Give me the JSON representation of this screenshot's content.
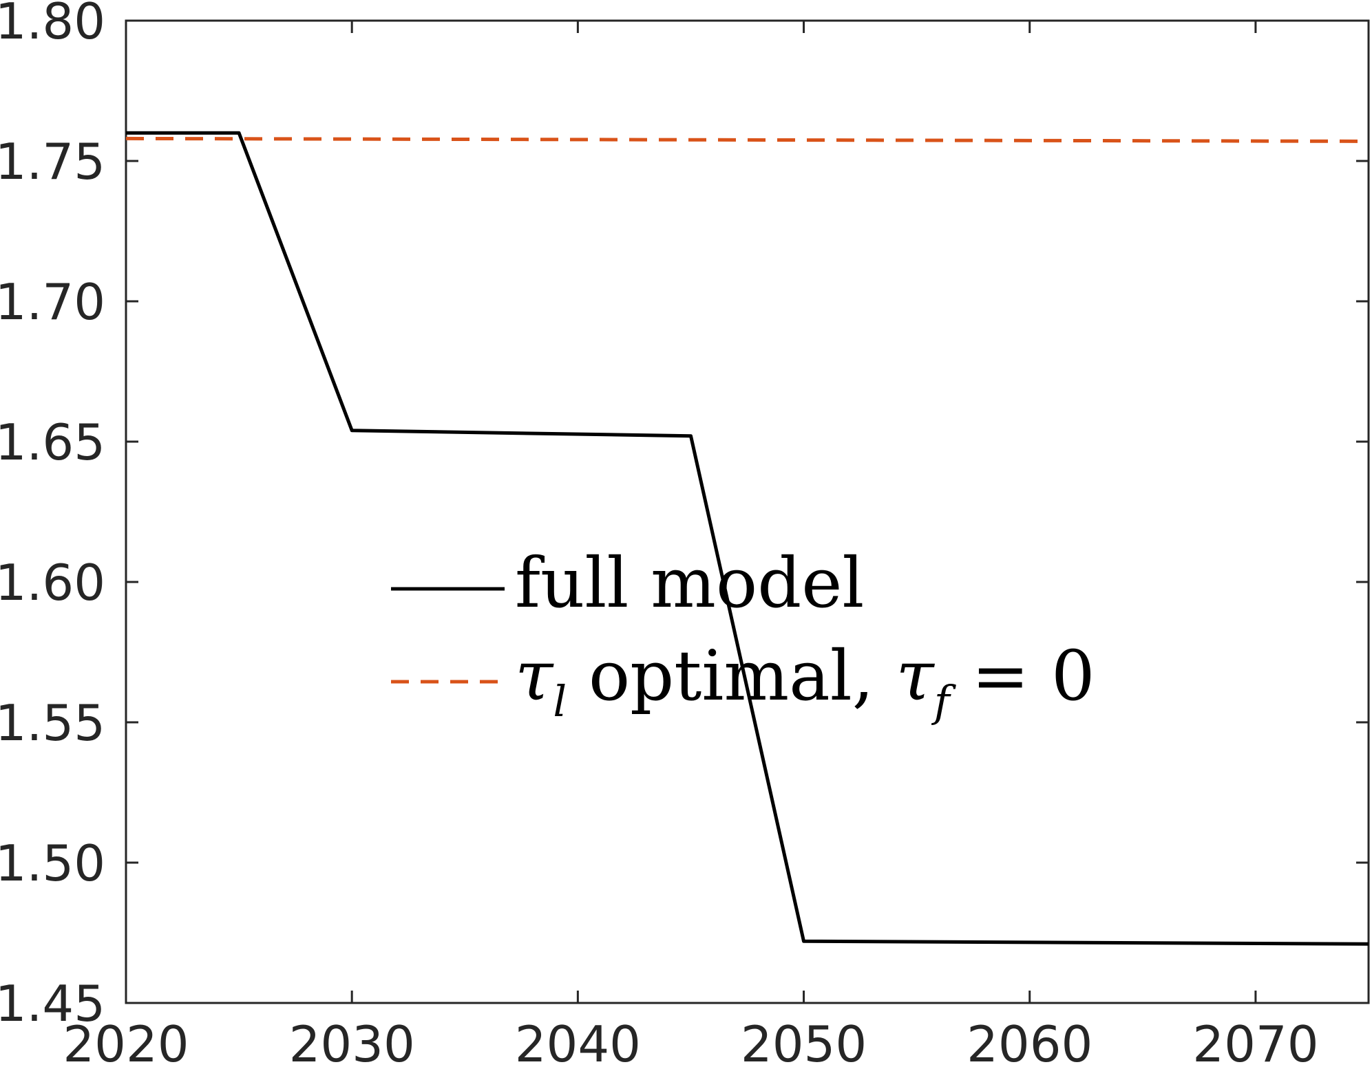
{
  "chart_data": {
    "type": "line",
    "title": "",
    "xlabel": "",
    "ylabel": "",
    "xlim": [
      2020,
      2075
    ],
    "ylim": [
      1.45,
      1.8
    ],
    "xticks": [
      2020,
      2030,
      2040,
      2050,
      2060,
      2070
    ],
    "yticks": [
      1.45,
      1.5,
      1.55,
      1.6,
      1.65,
      1.7,
      1.75,
      1.8
    ],
    "xtick_labels": [
      "2020",
      "2030",
      "2040",
      "2050",
      "2060",
      "2070"
    ],
    "ytick_labels": [
      "1.45",
      "1.50",
      "1.55",
      "1.60",
      "1.65",
      "1.70",
      "1.75",
      "1.80"
    ],
    "grid": false,
    "legend_position": "center",
    "series": [
      {
        "name": "full model",
        "color": "#000000",
        "style": "solid",
        "x": [
          2020,
          2025,
          2030,
          2045,
          2050,
          2075
        ],
        "y": [
          1.76,
          1.76,
          1.654,
          1.652,
          1.472,
          1.471
        ]
      },
      {
        "name": "τ_l optimal, τ_f = 0",
        "color": "#D95319",
        "style": "dashed",
        "x": [
          2020,
          2075
        ],
        "y": [
          1.758,
          1.757
        ]
      }
    ],
    "legend": {
      "entry1": "full model",
      "entry2_tau": "τ",
      "entry2_sub_l": "l",
      "entry2_mid": " optimal, ",
      "entry2_tau2": "τ",
      "entry2_sub_f": "f",
      "entry2_end": " = 0"
    }
  }
}
